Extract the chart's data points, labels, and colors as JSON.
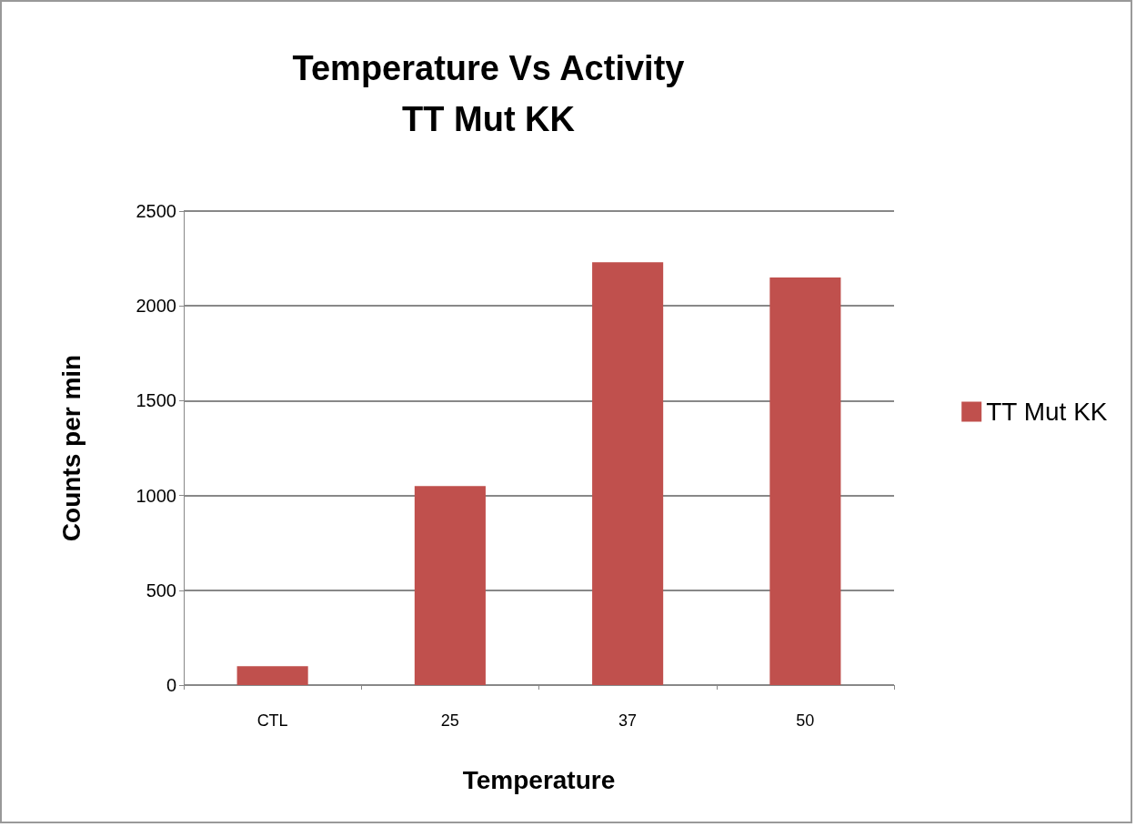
{
  "chart_data": {
    "type": "bar",
    "title": "Temperature Vs Activity\nTT Mut KK",
    "xlabel": "Temperature",
    "ylabel": "Counts per min",
    "categories": [
      "CTL",
      "25",
      "37",
      "50"
    ],
    "series": [
      {
        "name": "TT Mut KK",
        "color": "#c0504d",
        "values": [
          100,
          1050,
          2230,
          2150
        ]
      }
    ],
    "ylim": [
      0,
      2500
    ],
    "yticks": [
      0,
      500,
      1000,
      1500,
      2000,
      2500
    ],
    "grid": "y",
    "legend": "right"
  }
}
